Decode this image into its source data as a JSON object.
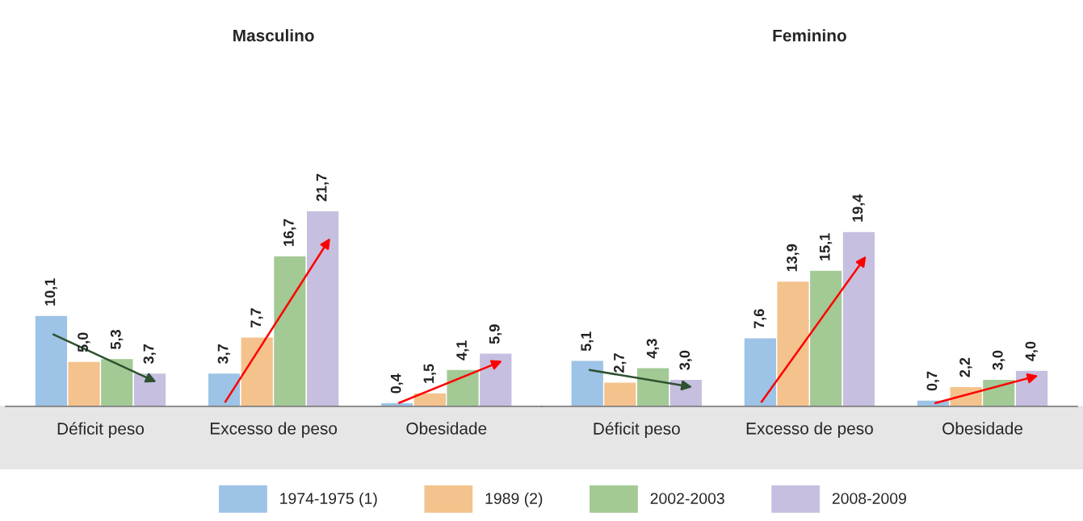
{
  "chart_data": [
    {
      "type": "bar",
      "title": "Masculino",
      "categories": [
        "Déficit peso",
        "Excesso de peso",
        "Obesidade"
      ],
      "series": [
        {
          "name": "1974-1975 (1)",
          "color": "#9dc3e6",
          "values": [
            10.1,
            3.7,
            0.4
          ],
          "value_labels": [
            "10,1",
            "3,7",
            "0,4"
          ]
        },
        {
          "name": "1989 (2)",
          "color": "#f4c28c",
          "values": [
            5.0,
            7.7,
            1.5
          ],
          "value_labels": [
            "5,0",
            "7,7",
            "1,5"
          ]
        },
        {
          "name": "2002-2003",
          "color": "#a3c994",
          "values": [
            5.3,
            16.7,
            4.1
          ],
          "value_labels": [
            "5,3",
            "16,7",
            "4,1"
          ]
        },
        {
          "name": "2008-2009",
          "color": "#c6bfdf",
          "values": [
            3.7,
            21.7,
            5.9
          ],
          "value_labels": [
            "3,7",
            "21,7",
            "5,9"
          ]
        }
      ],
      "legend": "bottom"
    },
    {
      "type": "bar",
      "title": "Feminino",
      "categories": [
        "Déficit peso",
        "Excesso de peso",
        "Obesidade"
      ],
      "series": [
        {
          "name": "1974-1975 (1)",
          "color": "#9dc3e6",
          "values": [
            5.1,
            7.6,
            0.7
          ],
          "value_labels": [
            "5,1",
            "7,6",
            "0,7"
          ]
        },
        {
          "name": "1989 (2)",
          "color": "#f4c28c",
          "values": [
            2.7,
            13.9,
            2.2
          ],
          "value_labels": [
            "2,7",
            "13,9",
            "2,2"
          ]
        },
        {
          "name": "2002-2003",
          "color": "#a3c994",
          "values": [
            4.3,
            15.1,
            3.0
          ],
          "value_labels": [
            "4,3",
            "15,1",
            "3,0"
          ]
        },
        {
          "name": "2008-2009",
          "color": "#c6bfdf",
          "values": [
            3.0,
            19.4,
            4.0
          ],
          "value_labels": [
            "3,0",
            "19,4",
            "4,0"
          ]
        }
      ],
      "legend": "bottom"
    }
  ]
}
